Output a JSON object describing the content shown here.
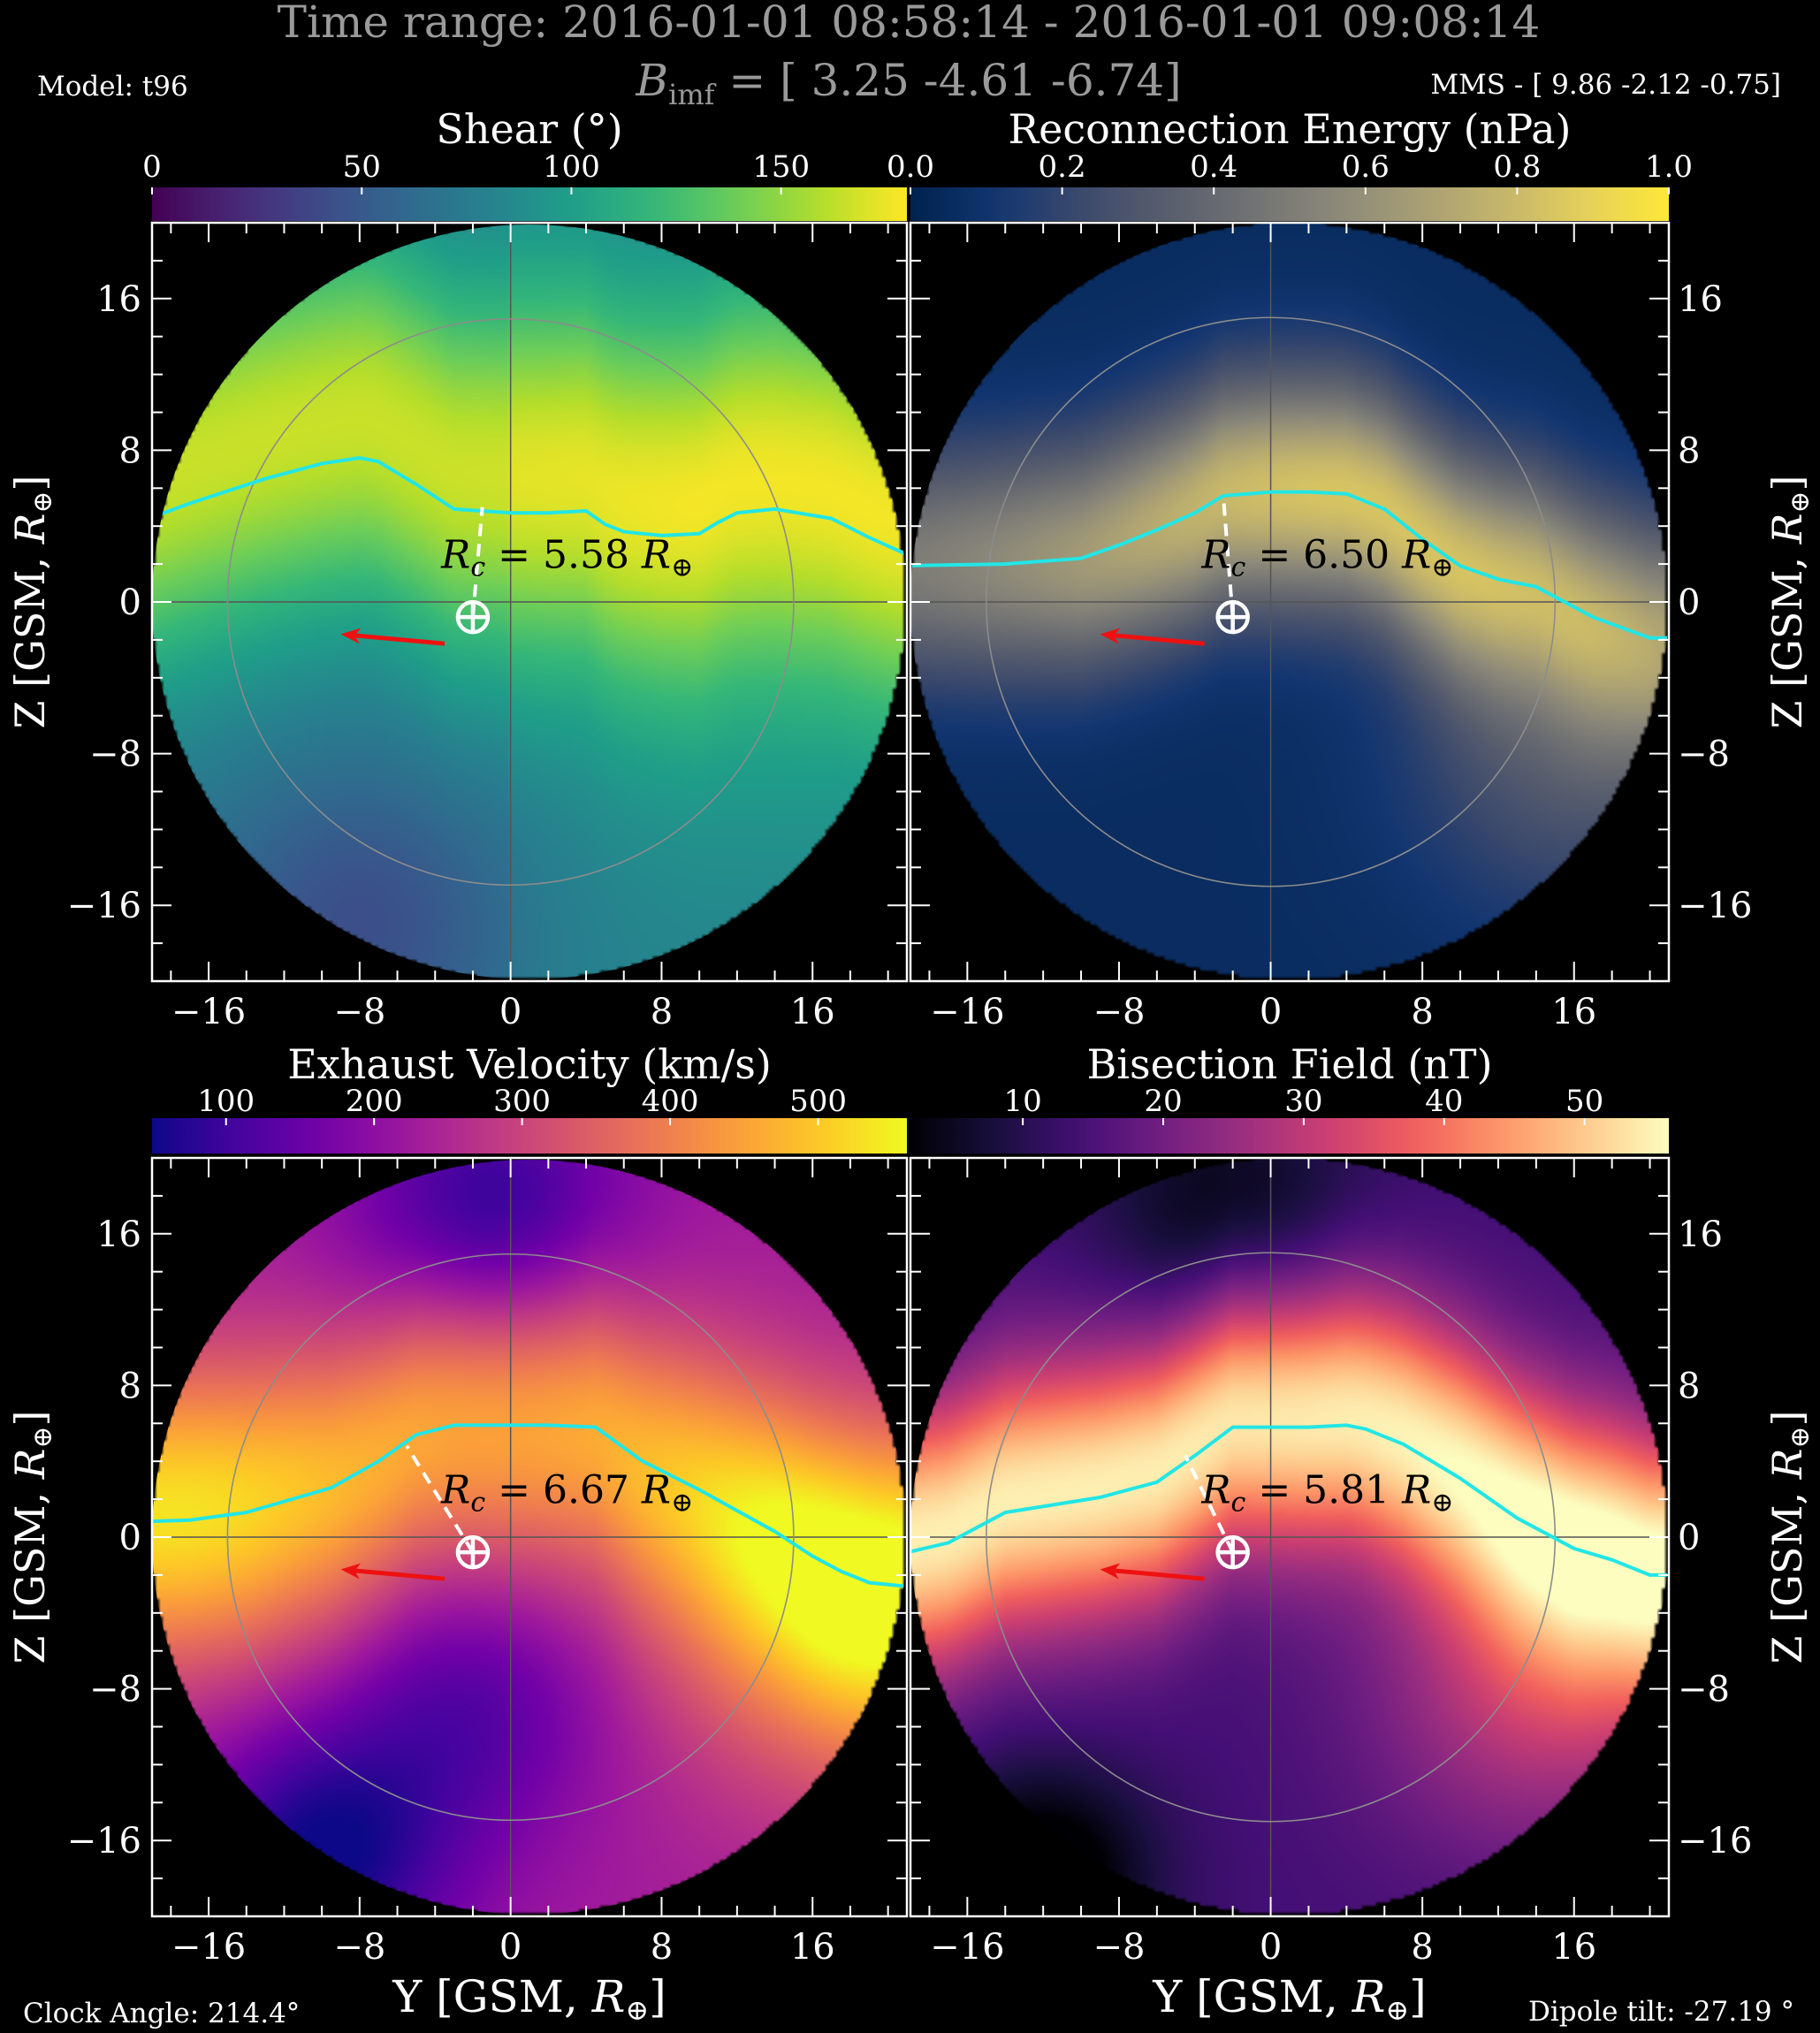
{
  "header": {
    "title_line": "Time range:  2016-01-01 08:58:14 - 2016-01-01 09:08:14",
    "bimf_label": "B",
    "bimf_sub": "imf",
    "bimf_value": " = [ 3.25 -4.61 -6.74]",
    "model": "Model: t96",
    "mms": "MMS - [ 9.86 -2.12 -0.75]",
    "clock_angle": "Clock Angle: 214.4°",
    "dipole_tilt": "Dipole tilt: -27.19 °"
  },
  "chart_data": [
    {
      "type": "heatmap",
      "panel": "top-left",
      "colorbar_label": "Shear (°)",
      "colormap": "viridis",
      "colorbar_ticks": [
        0,
        50,
        100,
        150
      ],
      "colorbar_range": [
        0,
        180
      ],
      "annotation": "R_c = 5.58 R_⊕",
      "xlabel": "",
      "ylabel": "Z [GSM, R⊕]",
      "xlim": [
        -19,
        21
      ],
      "ylim": [
        -20,
        20
      ],
      "xticks": [
        -16,
        -8,
        0,
        8,
        16
      ],
      "yticks": [
        -16,
        -8,
        0,
        8,
        16
      ],
      "reconnection_line": {
        "y": [
          -20,
          -17,
          -13,
          -10,
          -8,
          -7,
          -5,
          -3,
          0,
          2,
          4,
          5,
          6,
          8,
          10,
          11,
          12,
          14,
          17,
          19,
          21
        ],
        "z": [
          4.1,
          5.2,
          6.5,
          7.3,
          7.6,
          7.4,
          6.2,
          4.9,
          4.7,
          4.7,
          4.8,
          4.1,
          3.7,
          3.5,
          3.6,
          4.2,
          4.7,
          4.9,
          4.4,
          3.4,
          2.5
        ]
      },
      "magnetopause_radius": 15,
      "earth": [
        -2,
        -0.8
      ],
      "dashed_to": [
        -1.5,
        5.0
      ],
      "arrow": {
        "from": [
          -3.5,
          -2.2
        ],
        "to": [
          -9,
          -1.7
        ]
      },
      "grid": true
    },
    {
      "type": "heatmap",
      "panel": "top-right",
      "colorbar_label": "Reconnection Energy (nPa)",
      "colormap": "cividis",
      "colorbar_ticks": [
        "0.0",
        "0.2",
        "0.4",
        "0.6",
        "0.8",
        "1.0"
      ],
      "colorbar_range": [
        0,
        1
      ],
      "annotation": "R_c = 6.50 R_⊕",
      "xlabel": "",
      "ylabel": "Z [GSM, R⊕]",
      "xlim": [
        -19,
        21
      ],
      "ylim": [
        -20,
        20
      ],
      "xticks": [
        -16,
        -8,
        0,
        8,
        16
      ],
      "yticks": [
        -16,
        -8,
        0,
        8,
        16
      ],
      "reconnection_line": {
        "y": [
          -20,
          -14,
          -10,
          -8,
          -6,
          -4,
          -2.5,
          0,
          2,
          4,
          6,
          8,
          10,
          12,
          14,
          17,
          20,
          21
        ],
        "z": [
          1.9,
          2.0,
          2.3,
          3.0,
          3.8,
          4.7,
          5.6,
          5.8,
          5.8,
          5.7,
          4.9,
          3.3,
          1.9,
          1.2,
          0.8,
          -0.8,
          -1.9,
          -1.9
        ]
      },
      "magnetopause_radius": 15,
      "earth": [
        -2,
        -0.8
      ],
      "dashed_to": [
        -2.5,
        5.6
      ],
      "arrow": {
        "from": [
          -3.5,
          -2.2
        ],
        "to": [
          -9,
          -1.7
        ]
      },
      "grid": true
    },
    {
      "type": "heatmap",
      "panel": "bottom-left",
      "colorbar_label": "Exhaust Velocity (km/s)",
      "colormap": "plasma",
      "colorbar_ticks": [
        100,
        200,
        300,
        400,
        500
      ],
      "colorbar_range": [
        50,
        560
      ],
      "annotation": "R_c = 6.67 R_⊕",
      "xlabel": "Y [GSM, R⊕]",
      "ylabel": "Z [GSM, R⊕]",
      "xlim": [
        -19,
        21
      ],
      "ylim": [
        -20,
        20
      ],
      "xticks": [
        -16,
        -8,
        0,
        8,
        16
      ],
      "yticks": [
        -16,
        -8,
        0,
        8,
        16
      ],
      "reconnection_line": {
        "y": [
          -20,
          -17,
          -14,
          -9.5,
          -7,
          -5,
          -3,
          0,
          2,
          4.5,
          7,
          10,
          14,
          16,
          17.5,
          19,
          21
        ],
        "z": [
          0.8,
          0.9,
          1.3,
          2.6,
          4.0,
          5.4,
          5.9,
          5.9,
          5.9,
          5.8,
          4.0,
          2.5,
          0.3,
          -1.0,
          -1.8,
          -2.4,
          -2.6
        ]
      },
      "magnetopause_radius": 15,
      "earth": [
        -2,
        -0.8
      ],
      "dashed_to": [
        -5.5,
        4.8
      ],
      "arrow": {
        "from": [
          -3.5,
          -2.2
        ],
        "to": [
          -9,
          -1.7
        ]
      },
      "grid": true
    },
    {
      "type": "heatmap",
      "panel": "bottom-right",
      "colorbar_label": "Bisection Field (nT)",
      "colormap": "magma",
      "colorbar_ticks": [
        10,
        20,
        30,
        40,
        50
      ],
      "colorbar_range": [
        2,
        56
      ],
      "annotation": "R_c = 5.81 R_⊕",
      "xlabel": "Y [GSM, R⊕]",
      "ylabel": "Z [GSM, R⊕]",
      "xlim": [
        -19,
        21
      ],
      "ylim": [
        -20,
        20
      ],
      "xticks": [
        -16,
        -8,
        0,
        8,
        16
      ],
      "yticks": [
        -16,
        -8,
        0,
        8,
        16
      ],
      "reconnection_line": {
        "y": [
          -20,
          -17,
          -14,
          -9,
          -6,
          -4,
          -2,
          0,
          2,
          4,
          5,
          7,
          10,
          13,
          16,
          18,
          20,
          21
        ],
        "z": [
          -1.0,
          -0.3,
          1.3,
          2.1,
          2.9,
          4.3,
          5.8,
          5.8,
          5.8,
          5.9,
          5.7,
          4.9,
          3.1,
          1.0,
          -0.6,
          -1.2,
          -2.0,
          -2.0
        ]
      },
      "magnetopause_radius": 15,
      "earth": [
        -2,
        -0.8
      ],
      "dashed_to": [
        -4.5,
        4.3
      ],
      "arrow": {
        "from": [
          -3.5,
          -2.2
        ],
        "to": [
          -9,
          -1.7
        ]
      },
      "grid": true
    }
  ],
  "colors": {
    "reconnection_line": "#22e6e6",
    "arrow": "#ee1111",
    "earth": "#ffffff",
    "magnetopause": "#8c8c8c"
  }
}
